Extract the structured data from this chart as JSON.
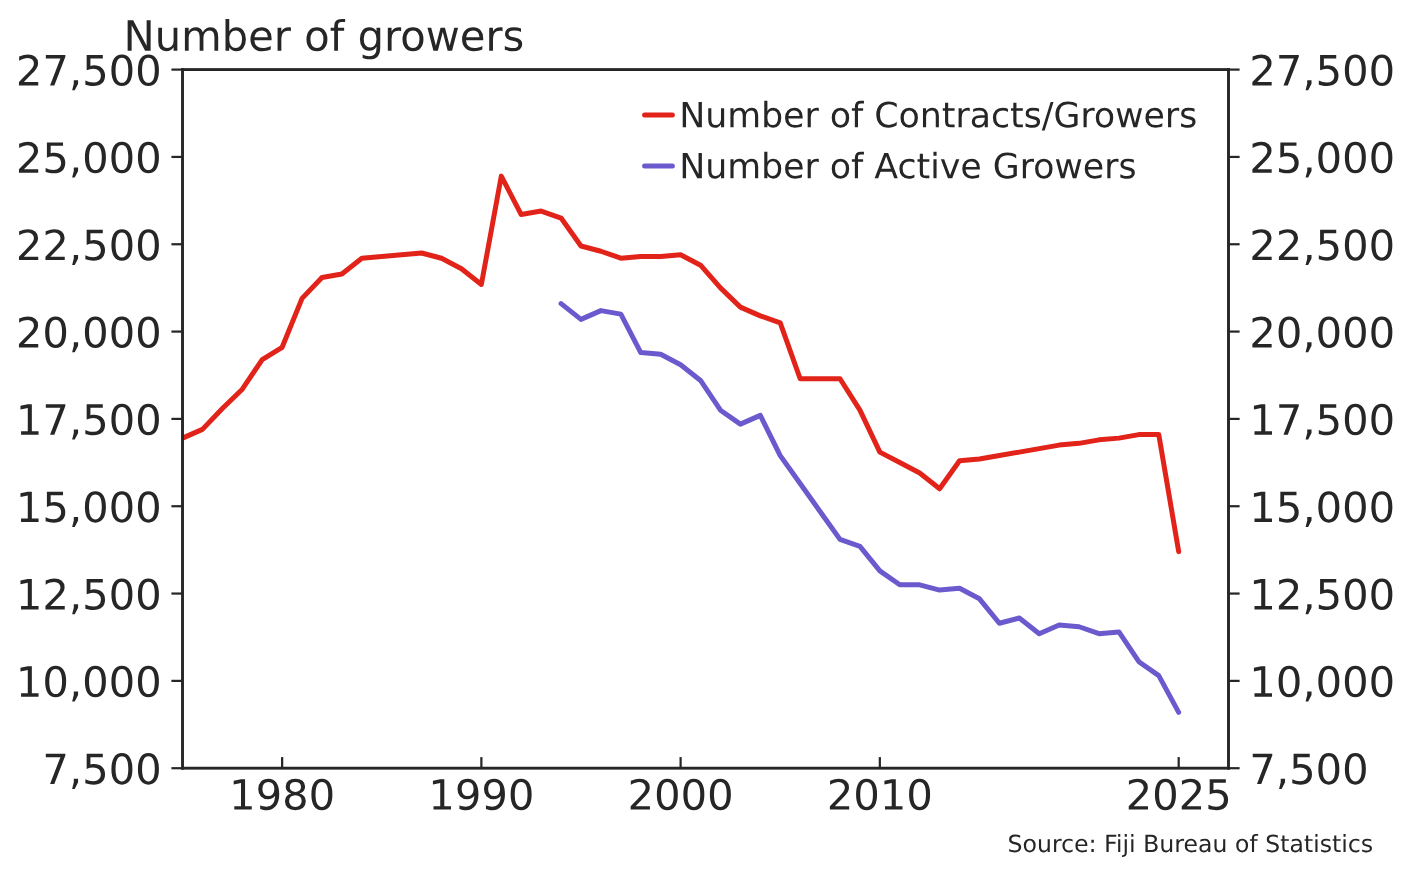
{
  "chart_data": {
    "type": "line",
    "title": "Number of growers",
    "x": [
      1975,
      1976,
      1977,
      1978,
      1979,
      1980,
      1981,
      1982,
      1983,
      1984,
      1985,
      1986,
      1987,
      1988,
      1989,
      1990,
      1991,
      1992,
      1993,
      1994,
      1995,
      1996,
      1997,
      1998,
      1999,
      2000,
      2001,
      2002,
      2003,
      2004,
      2005,
      2006,
      2007,
      2008,
      2009,
      2010,
      2011,
      2012,
      2013,
      2014,
      2015,
      2016,
      2017,
      2018,
      2019,
      2020,
      2021,
      2022,
      2023,
      2024,
      2025
    ],
    "series": [
      {
        "name": "Number of Contracts/Growers",
        "color": "#e2231a",
        "values": [
          16950,
          17200,
          17800,
          18350,
          19200,
          19550,
          20950,
          21550,
          21650,
          22100,
          22150,
          22200,
          22250,
          22100,
          21800,
          21350,
          24450,
          23350,
          23450,
          23250,
          22450,
          22300,
          22100,
          22150,
          22150,
          22200,
          21900,
          21250,
          20700,
          20450,
          20250,
          18650,
          18650,
          18650,
          17750,
          16550,
          16250,
          15950,
          15500,
          16300,
          16350,
          16450,
          16550,
          16650,
          16750,
          16800,
          16900,
          16950,
          17050,
          17050,
          13700
        ]
      },
      {
        "name": "Number of Active Growers",
        "color": "#6a5acd",
        "x": [
          1994,
          1995,
          1996,
          1997,
          1998,
          1999,
          2000,
          2001,
          2002,
          2003,
          2004,
          2005,
          2006,
          2007,
          2008,
          2009,
          2010,
          2011,
          2012,
          2013,
          2014,
          2015,
          2016,
          2017,
          2018,
          2019,
          2020,
          2021,
          2022,
          2023,
          2024,
          2025
        ],
        "values": [
          20800,
          20350,
          20600,
          20500,
          19400,
          19350,
          19050,
          18600,
          17750,
          17350,
          17600,
          16450,
          15650,
          14850,
          14050,
          13850,
          13150,
          12750,
          12750,
          12600,
          12650,
          12350,
          11650,
          11800,
          11350,
          11600,
          11550,
          11350,
          11400,
          10550,
          10150,
          9100
        ]
      }
    ],
    "xlim": [
      1975,
      2027.5
    ],
    "xticks": [
      1980,
      1990,
      2000,
      2010,
      2025
    ],
    "ylim": [
      7500,
      27500
    ],
    "yticks": [
      {
        "value": 7500,
        "label": "7,500"
      },
      {
        "value": 10000,
        "label": "10,000"
      },
      {
        "value": 12500,
        "label": "12,500"
      },
      {
        "value": 15000,
        "label": "15,000"
      },
      {
        "value": 17500,
        "label": "17,500"
      },
      {
        "value": 20000,
        "label": "20,000"
      },
      {
        "value": 22500,
        "label": "22,500"
      },
      {
        "value": 25000,
        "label": "25,000"
      },
      {
        "value": 27500,
        "label": "27,500"
      }
    ],
    "y2lim": [
      7500,
      27500
    ],
    "y2ticks": [
      {
        "value": 7500,
        "label": "7,500"
      },
      {
        "value": 10000,
        "label": "10,000"
      },
      {
        "value": 12500,
        "label": "12,500"
      },
      {
        "value": 15000,
        "label": "15,000"
      },
      {
        "value": 17500,
        "label": "17,500"
      },
      {
        "value": 20000,
        "label": "20,000"
      },
      {
        "value": 22500,
        "label": "22,500"
      },
      {
        "value": 25000,
        "label": "25,000"
      },
      {
        "value": 27500,
        "label": "27,500"
      }
    ],
    "annotations": [
      "Source: Fiji Bureau of Statistics"
    ],
    "legend": "top right",
    "grid": false,
    "marker": "none",
    "line_style": "solid"
  }
}
